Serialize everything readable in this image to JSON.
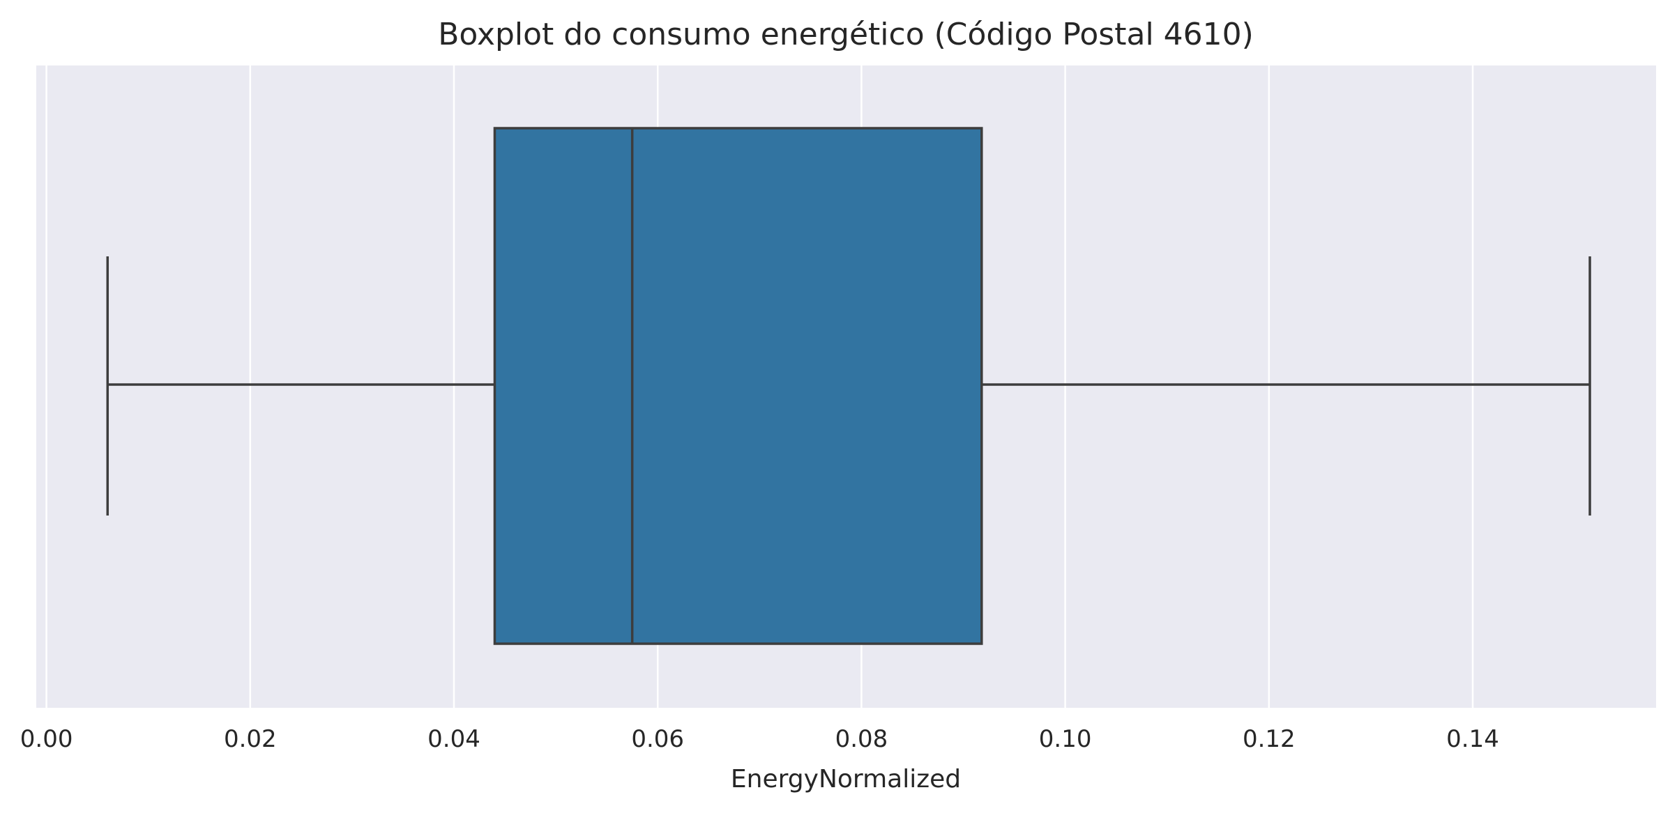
{
  "chart_data": {
    "type": "boxplot",
    "title": "Boxplot do consumo energético (Código Postal 4610)",
    "xlabel": "EnergyNormalized",
    "ylabel": "",
    "orientation": "horizontal",
    "xlim": [
      -0.001,
      0.158
    ],
    "x_ticks": [
      0.0,
      0.02,
      0.04,
      0.06,
      0.08,
      0.1,
      0.12,
      0.14
    ],
    "x_tick_labels": [
      "0.00",
      "0.02",
      "0.04",
      "0.06",
      "0.08",
      "0.10",
      "0.12",
      "0.14"
    ],
    "grid": true,
    "box": {
      "whisker_low": 0.006,
      "q1": 0.044,
      "median": 0.0575,
      "q3": 0.0918,
      "whisker_high": 0.1515
    },
    "colors": {
      "background": "#eaeaf2",
      "grid": "#ffffff",
      "box_fill": "#3274a1",
      "line": "#3d3d3d",
      "text": "#262626"
    }
  }
}
